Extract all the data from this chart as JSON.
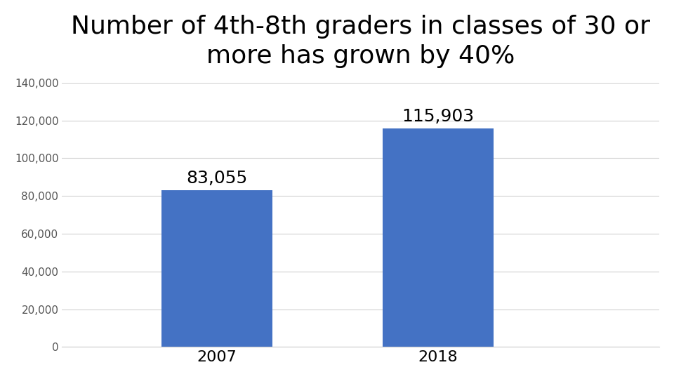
{
  "title": "Number of 4th-8th graders in classes of 30 or\nmore has grown by 40%",
  "categories": [
    "2007",
    "2018"
  ],
  "values": [
    83055,
    115903
  ],
  "labels": [
    "83,055",
    "115,903"
  ],
  "bar_color": "#4472c4",
  "background_color": "#ffffff",
  "ylim": [
    0,
    140000
  ],
  "yticks": [
    0,
    20000,
    40000,
    60000,
    80000,
    100000,
    120000,
    140000
  ],
  "ytick_labels": [
    "0",
    "20,000",
    "40,000",
    "60,000",
    "80,000",
    "100,000",
    "120,000",
    "140,000"
  ],
  "title_fontsize": 26,
  "label_fontsize": 18,
  "tick_fontsize": 11,
  "xtick_fontsize": 16,
  "bar_width": 0.5,
  "x_positions": [
    1,
    2
  ],
  "xlim": [
    0.3,
    3.0
  ]
}
